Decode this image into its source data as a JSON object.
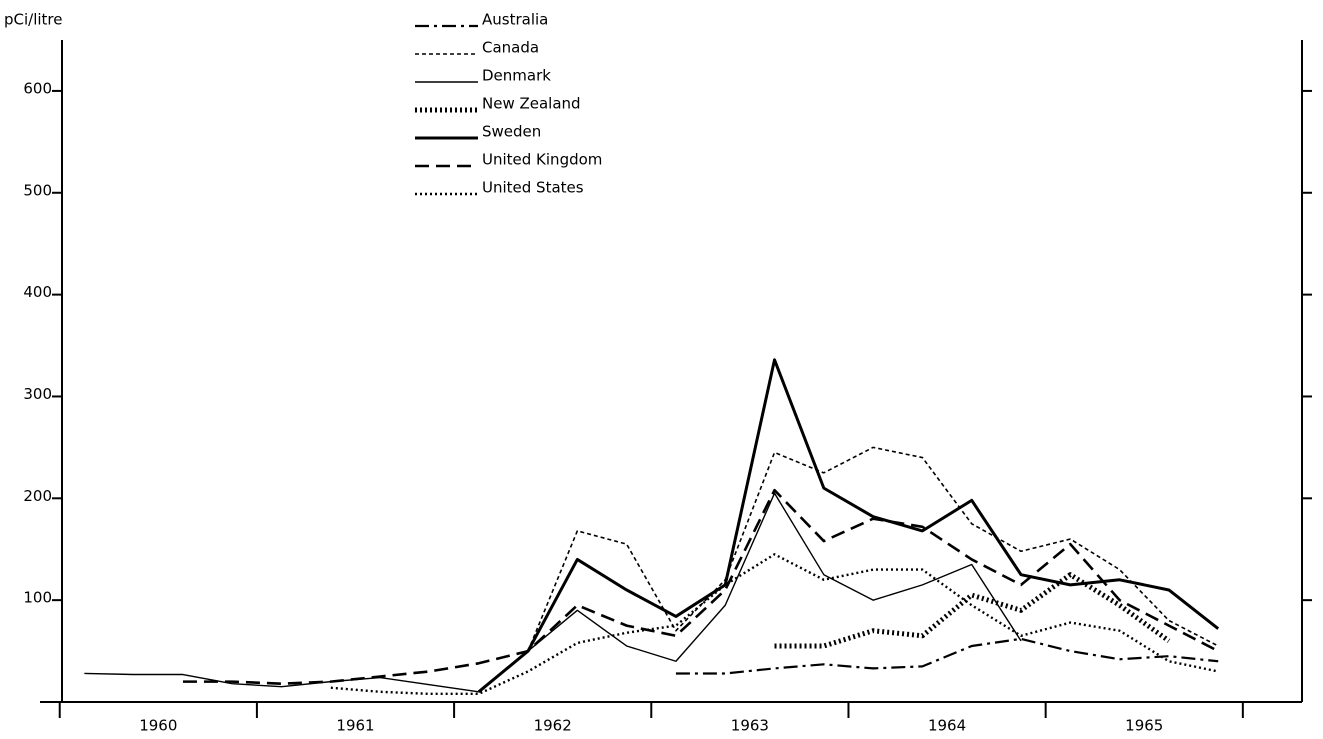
{
  "chart_data": {
    "type": "line",
    "y_label": "pCi/litre",
    "categories": [
      "1960",
      "1961",
      "1962",
      "1963",
      "1964",
      "1965"
    ],
    "x": [
      1960.125,
      1960.375,
      1960.625,
      1960.875,
      1961.125,
      1961.375,
      1961.625,
      1961.875,
      1962.125,
      1962.375,
      1962.625,
      1962.875,
      1963.125,
      1963.375,
      1963.625,
      1963.875,
      1964.125,
      1964.375,
      1964.625,
      1964.875,
      1965.125,
      1965.375,
      1965.625,
      1965.875
    ],
    "xlim": [
      1959.9,
      1966.3
    ],
    "xticks": [
      1960,
      1961,
      1962,
      1963,
      1964,
      1965,
      1966
    ],
    "ylim": [
      0,
      650
    ],
    "yticks": [
      100,
      200,
      300,
      400,
      500,
      600
    ],
    "series": [
      {
        "name": "Australia",
        "color": "#000000",
        "dash": "14 5 3 5",
        "width": 2.2,
        "values": [
          null,
          null,
          null,
          null,
          null,
          null,
          null,
          null,
          null,
          null,
          null,
          null,
          28,
          28,
          33,
          37,
          33,
          35,
          55,
          62,
          50,
          42,
          45,
          40
        ]
      },
      {
        "name": "Canada",
        "color": "#000000",
        "dash": "4 3",
        "width": 1.6,
        "values": [
          null,
          null,
          null,
          null,
          null,
          null,
          null,
          null,
          null,
          50,
          168,
          155,
          70,
          120,
          245,
          225,
          250,
          240,
          175,
          148,
          160,
          130,
          80,
          55
        ]
      },
      {
        "name": "Denmark",
        "color": "#000000",
        "dash": "",
        "width": 1.4,
        "values": [
          28,
          27,
          27,
          18,
          15,
          20,
          24,
          17,
          10,
          50,
          90,
          55,
          40,
          95,
          205,
          125,
          100,
          115,
          135,
          60,
          null,
          null,
          null,
          null
        ]
      },
      {
        "name": "New Zealand",
        "color": "#000000",
        "dash": "2 3",
        "width": 5,
        "values": [
          null,
          null,
          null,
          null,
          null,
          null,
          null,
          null,
          null,
          null,
          null,
          null,
          null,
          null,
          55,
          55,
          70,
          65,
          105,
          90,
          125,
          95,
          60,
          null
        ]
      },
      {
        "name": "Sweden",
        "color": "#000000",
        "dash": "",
        "width": 3,
        "values": [
          null,
          null,
          null,
          null,
          null,
          null,
          null,
          null,
          10,
          50,
          140,
          110,
          84,
          115,
          336,
          210,
          182,
          168,
          198,
          125,
          115,
          120,
          110,
          72
        ]
      },
      {
        "name": "United Kingdom",
        "color": "#000000",
        "dash": "14 7",
        "width": 2.6,
        "values": [
          null,
          null,
          20,
          20,
          18,
          20,
          25,
          30,
          38,
          50,
          95,
          75,
          65,
          110,
          208,
          158,
          180,
          172,
          140,
          115,
          155,
          100,
          75,
          50
        ]
      },
      {
        "name": "United States",
        "color": "#000000",
        "dash": "2 3",
        "width": 2.4,
        "values": [
          null,
          null,
          null,
          null,
          null,
          14,
          10,
          8,
          8,
          30,
          58,
          68,
          75,
          115,
          145,
          120,
          130,
          130,
          95,
          65,
          78,
          70,
          40,
          30
        ]
      }
    ]
  }
}
